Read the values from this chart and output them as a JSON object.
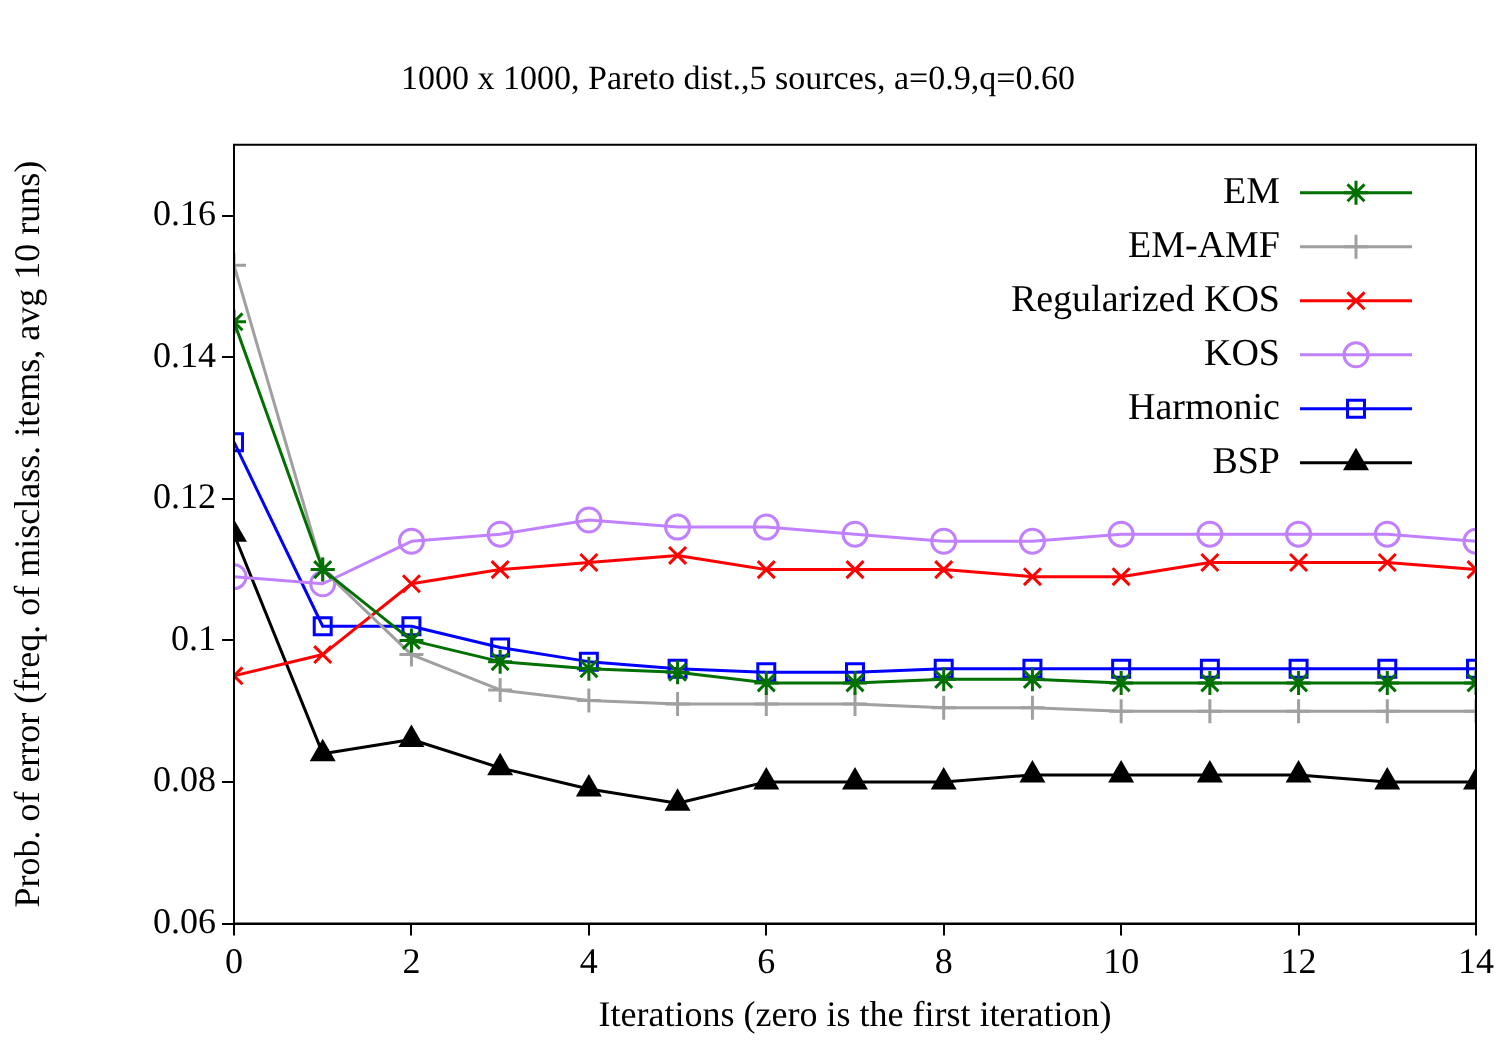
{
  "chart_data": {
    "type": "line",
    "title": "1000 x 1000, Pareto dist.,5 sources, a=0.9,q=0.60",
    "xlabel": "Iterations (zero is the first iteration)",
    "ylabel": "Prob. of error (freq. of misclass. items, avg 10 runs)",
    "x": [
      0,
      1,
      2,
      3,
      4,
      5,
      6,
      7,
      8,
      9,
      10,
      11,
      12,
      13,
      14
    ],
    "xlim": [
      0,
      14
    ],
    "xticks": [
      0,
      2,
      4,
      6,
      8,
      10,
      12,
      14
    ],
    "ylim": [
      0.06,
      0.17
    ],
    "yticks": [
      0.06,
      0.08,
      0.1,
      0.12,
      0.14,
      0.16
    ],
    "legend": "top right",
    "series": [
      {
        "name": "EM",
        "color": "#007000",
        "marker": "cross",
        "values": [
          0.145,
          0.11,
          0.1,
          0.097,
          0.096,
          0.0955,
          0.094,
          0.094,
          0.0945,
          0.0945,
          0.094,
          0.094,
          0.094,
          0.094,
          0.094
        ]
      },
      {
        "name": "EM-AMF",
        "color": "#a0a0a0",
        "marker": "plus",
        "values": [
          0.153,
          0.11,
          0.098,
          0.093,
          0.0915,
          0.091,
          0.091,
          0.091,
          0.0905,
          0.0905,
          0.09,
          0.09,
          0.09,
          0.09,
          0.09
        ]
      },
      {
        "name": "Regularized KOS",
        "color": "#ff0000",
        "marker": "x",
        "values": [
          0.095,
          0.098,
          0.108,
          0.11,
          0.111,
          0.112,
          0.11,
          0.11,
          0.11,
          0.109,
          0.109,
          0.111,
          0.111,
          0.111,
          0.11
        ]
      },
      {
        "name": "KOS",
        "color": "#c080ff",
        "marker": "circle",
        "values": [
          0.109,
          0.108,
          0.114,
          0.115,
          0.117,
          0.116,
          0.116,
          0.115,
          0.114,
          0.114,
          0.115,
          0.115,
          0.115,
          0.115,
          0.114
        ]
      },
      {
        "name": "Harmonic",
        "color": "#0000ff",
        "marker": "square",
        "values": [
          0.128,
          0.102,
          0.102,
          0.099,
          0.097,
          0.096,
          0.0955,
          0.0955,
          0.096,
          0.096,
          0.096,
          0.096,
          0.096,
          0.096,
          0.096
        ]
      },
      {
        "name": "BSP",
        "color": "#000000",
        "marker": "triangle",
        "values": [
          0.115,
          0.084,
          0.086,
          0.082,
          0.079,
          0.077,
          0.08,
          0.08,
          0.08,
          0.081,
          0.081,
          0.081,
          0.081,
          0.08,
          0.08
        ]
      }
    ]
  }
}
